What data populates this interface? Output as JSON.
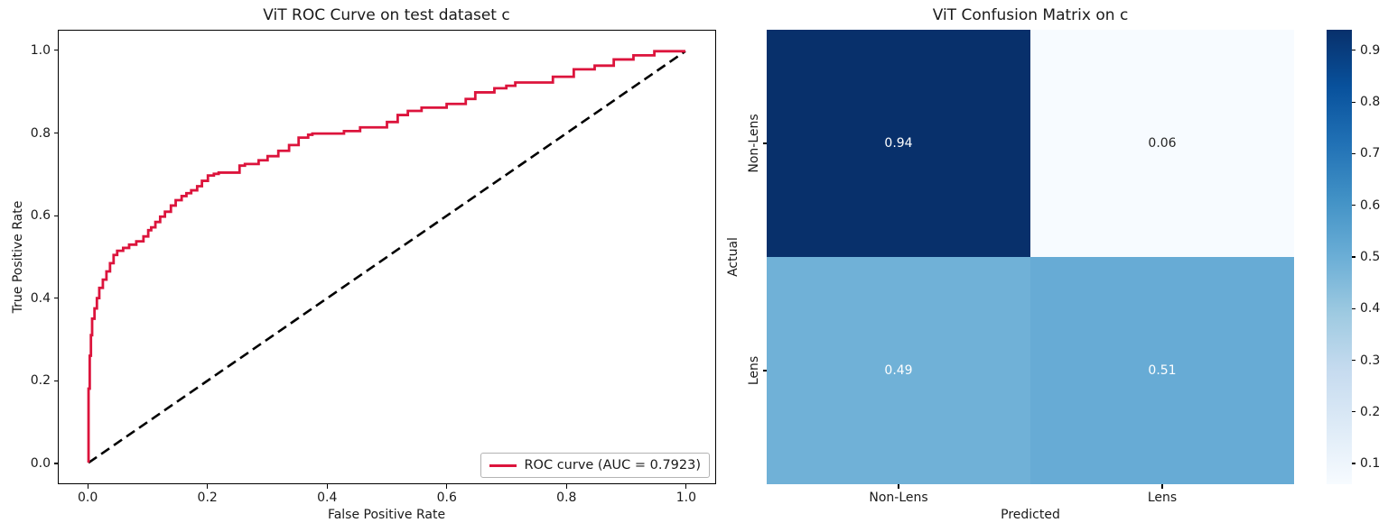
{
  "figure": {
    "background": "#ffffff"
  },
  "roc": {
    "title": "ViT ROC Curve on test dataset c",
    "xlabel": "False Positive Rate",
    "ylabel": "True Positive Rate",
    "legend_label": "ROC curve (AUC = 0.7923)",
    "auc_value": "0.7923",
    "curve_color": "#DC143C",
    "diagonal_color": "#000000"
  },
  "cm": {
    "title": "ViT Confusion Matrix on c",
    "xlabel": "Predicted",
    "ylabel": "Actual"
  },
  "chart_data": [
    {
      "type": "line",
      "title": "ViT ROC Curve on test dataset c",
      "xlabel": "False Positive Rate",
      "ylabel": "True Positive Rate",
      "xlim": [
        -0.05,
        1.05
      ],
      "ylim": [
        -0.05,
        1.05
      ],
      "xticks": [
        0.0,
        0.2,
        0.4,
        0.6,
        0.8,
        1.0
      ],
      "yticks": [
        0.0,
        0.2,
        0.4,
        0.6,
        0.8,
        1.0
      ],
      "grid": false,
      "legend_position": "lower right",
      "series": [
        {
          "name": "ROC curve (AUC = 0.7923)",
          "color": "#DC143C",
          "style": "step",
          "linewidth": 2.8,
          "points": [
            [
              0.0,
              0.0
            ],
            [
              0.002,
              0.18
            ],
            [
              0.004,
              0.26
            ],
            [
              0.006,
              0.31
            ],
            [
              0.01,
              0.35
            ],
            [
              0.014,
              0.375
            ],
            [
              0.018,
              0.4
            ],
            [
              0.024,
              0.425
            ],
            [
              0.03,
              0.445
            ],
            [
              0.036,
              0.465
            ],
            [
              0.042,
              0.485
            ],
            [
              0.048,
              0.505
            ],
            [
              0.058,
              0.515
            ],
            [
              0.068,
              0.522
            ],
            [
              0.08,
              0.53
            ],
            [
              0.092,
              0.538
            ],
            [
              0.1,
              0.55
            ],
            [
              0.105,
              0.565
            ],
            [
              0.112,
              0.572
            ],
            [
              0.12,
              0.585
            ],
            [
              0.128,
              0.598
            ],
            [
              0.138,
              0.61
            ],
            [
              0.146,
              0.625
            ],
            [
              0.156,
              0.638
            ],
            [
              0.164,
              0.648
            ],
            [
              0.172,
              0.655
            ],
            [
              0.182,
              0.662
            ],
            [
              0.19,
              0.672
            ],
            [
              0.2,
              0.685
            ],
            [
              0.21,
              0.698
            ],
            [
              0.218,
              0.702
            ],
            [
              0.253,
              0.705
            ],
            [
              0.262,
              0.722
            ],
            [
              0.285,
              0.726
            ],
            [
              0.3,
              0.735
            ],
            [
              0.318,
              0.745
            ],
            [
              0.336,
              0.758
            ],
            [
              0.352,
              0.772
            ],
            [
              0.368,
              0.79
            ],
            [
              0.375,
              0.797
            ],
            [
              0.428,
              0.8
            ],
            [
              0.455,
              0.806
            ],
            [
              0.5,
              0.815
            ],
            [
              0.518,
              0.828
            ],
            [
              0.535,
              0.845
            ],
            [
              0.558,
              0.855
            ],
            [
              0.6,
              0.863
            ],
            [
              0.632,
              0.872
            ],
            [
              0.648,
              0.884
            ],
            [
              0.68,
              0.9
            ],
            [
              0.7,
              0.91
            ],
            [
              0.715,
              0.916
            ],
            [
              0.778,
              0.924
            ],
            [
              0.813,
              0.938
            ],
            [
              0.848,
              0.956
            ],
            [
              0.88,
              0.965
            ],
            [
              0.913,
              0.98
            ],
            [
              0.948,
              0.99
            ],
            [
              0.968,
              1.0
            ],
            [
              1.0,
              1.0
            ]
          ]
        },
        {
          "name": "chance-diagonal",
          "color": "#000000",
          "style": "dashed",
          "linewidth": 2.6,
          "points": [
            [
              0.0,
              0.0
            ],
            [
              1.0,
              1.0
            ]
          ]
        }
      ],
      "auc": 0.7923
    },
    {
      "type": "heatmap",
      "title": "ViT Confusion Matrix on c",
      "xlabel": "Predicted",
      "ylabel": "Actual",
      "x_categories": [
        "Non-Lens",
        "Lens"
      ],
      "y_categories": [
        "Non-Lens",
        "Lens"
      ],
      "values": [
        [
          0.94,
          0.06
        ],
        [
          0.49,
          0.51
        ]
      ],
      "cell_colors": [
        [
          "#08306b",
          "#f7fbff"
        ],
        [
          "#70b1d7",
          "#67abd5"
        ]
      ],
      "cell_text_colors": [
        [
          "#ffffff",
          "#262626"
        ],
        [
          "#ffffff",
          "#ffffff"
        ]
      ],
      "colorbar": {
        "vmin": 0.06,
        "vmax": 0.94,
        "ticks": [
          0.1,
          0.2,
          0.3,
          0.4,
          0.5,
          0.6,
          0.7,
          0.8,
          0.9
        ],
        "colormap": "Blues",
        "gradient_stops": [
          "#f7fbff",
          "#deebf7",
          "#c6dbef",
          "#9ecae1",
          "#6baed6",
          "#4292c6",
          "#2171b5",
          "#08519c",
          "#08306b"
        ]
      }
    }
  ]
}
